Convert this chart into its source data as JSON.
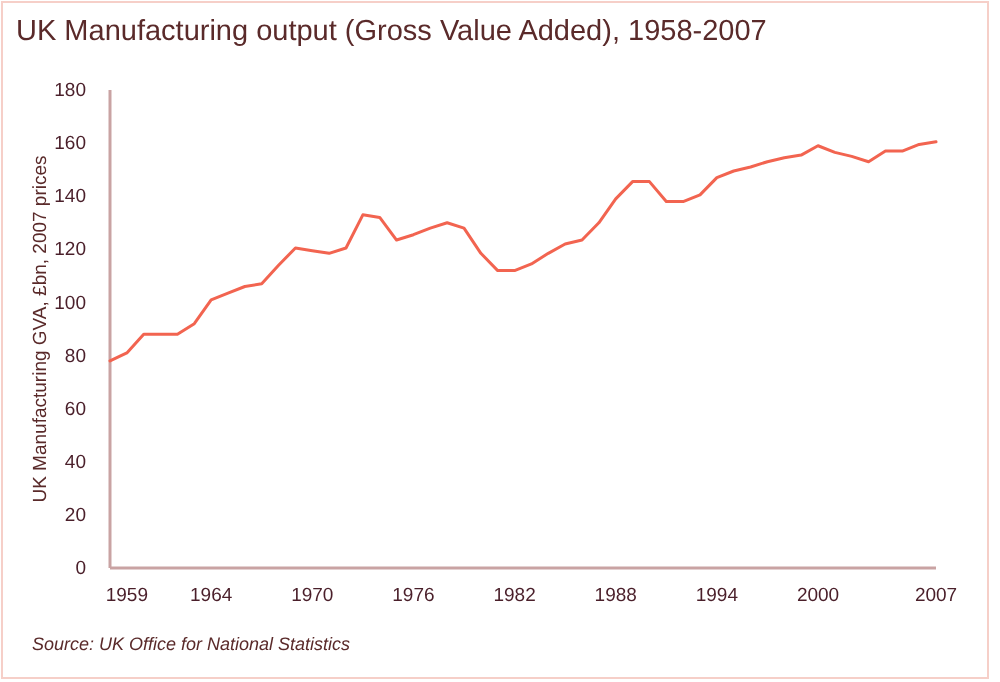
{
  "chart_data": {
    "type": "line",
    "title": "UK Manufacturing output (Gross Value Added), 1958-2007",
    "ylabel": "UK Manufacturing GVA, £bn, 2007 prices",
    "annotations": [
      "Source: UK Office for National Statistics"
    ],
    "x": [
      1958,
      1959,
      1960,
      1961,
      1962,
      1963,
      1964,
      1965,
      1966,
      1967,
      1968,
      1969,
      1970,
      1971,
      1972,
      1973,
      1974,
      1975,
      1976,
      1977,
      1978,
      1979,
      1980,
      1981,
      1982,
      1983,
      1984,
      1985,
      1986,
      1987,
      1988,
      1989,
      1990,
      1991,
      1992,
      1993,
      1994,
      1995,
      1996,
      1997,
      1998,
      1999,
      2000,
      2001,
      2002,
      2003,
      2004,
      2005,
      2006,
      2007
    ],
    "series": [
      {
        "color": "#f26450",
        "values": [
          78,
          81,
          88,
          88,
          88,
          92,
          101,
          103.5,
          106,
          107,
          114,
          120.5,
          119.5,
          118.5,
          120.5,
          133,
          132,
          123.5,
          125.5,
          128,
          130,
          128,
          118.5,
          112,
          112,
          114.5,
          118.5,
          122,
          123.5,
          130,
          139,
          145.5,
          145.5,
          138,
          138,
          140.5,
          147,
          149.5,
          151,
          153,
          154.5,
          155.5,
          159,
          156.5,
          155,
          153,
          157,
          157,
          159.5,
          160.5
        ]
      }
    ],
    "xlim": [
      1958,
      2007
    ],
    "xticks": [
      1959,
      1964,
      1970,
      1976,
      1982,
      1988,
      1994,
      2000,
      2007
    ],
    "ylim": [
      0,
      180
    ],
    "yticks": [
      0,
      20,
      40,
      60,
      80,
      100,
      120,
      140,
      160,
      180
    ],
    "grid": false,
    "marker": "none",
    "line_style": "solid"
  }
}
